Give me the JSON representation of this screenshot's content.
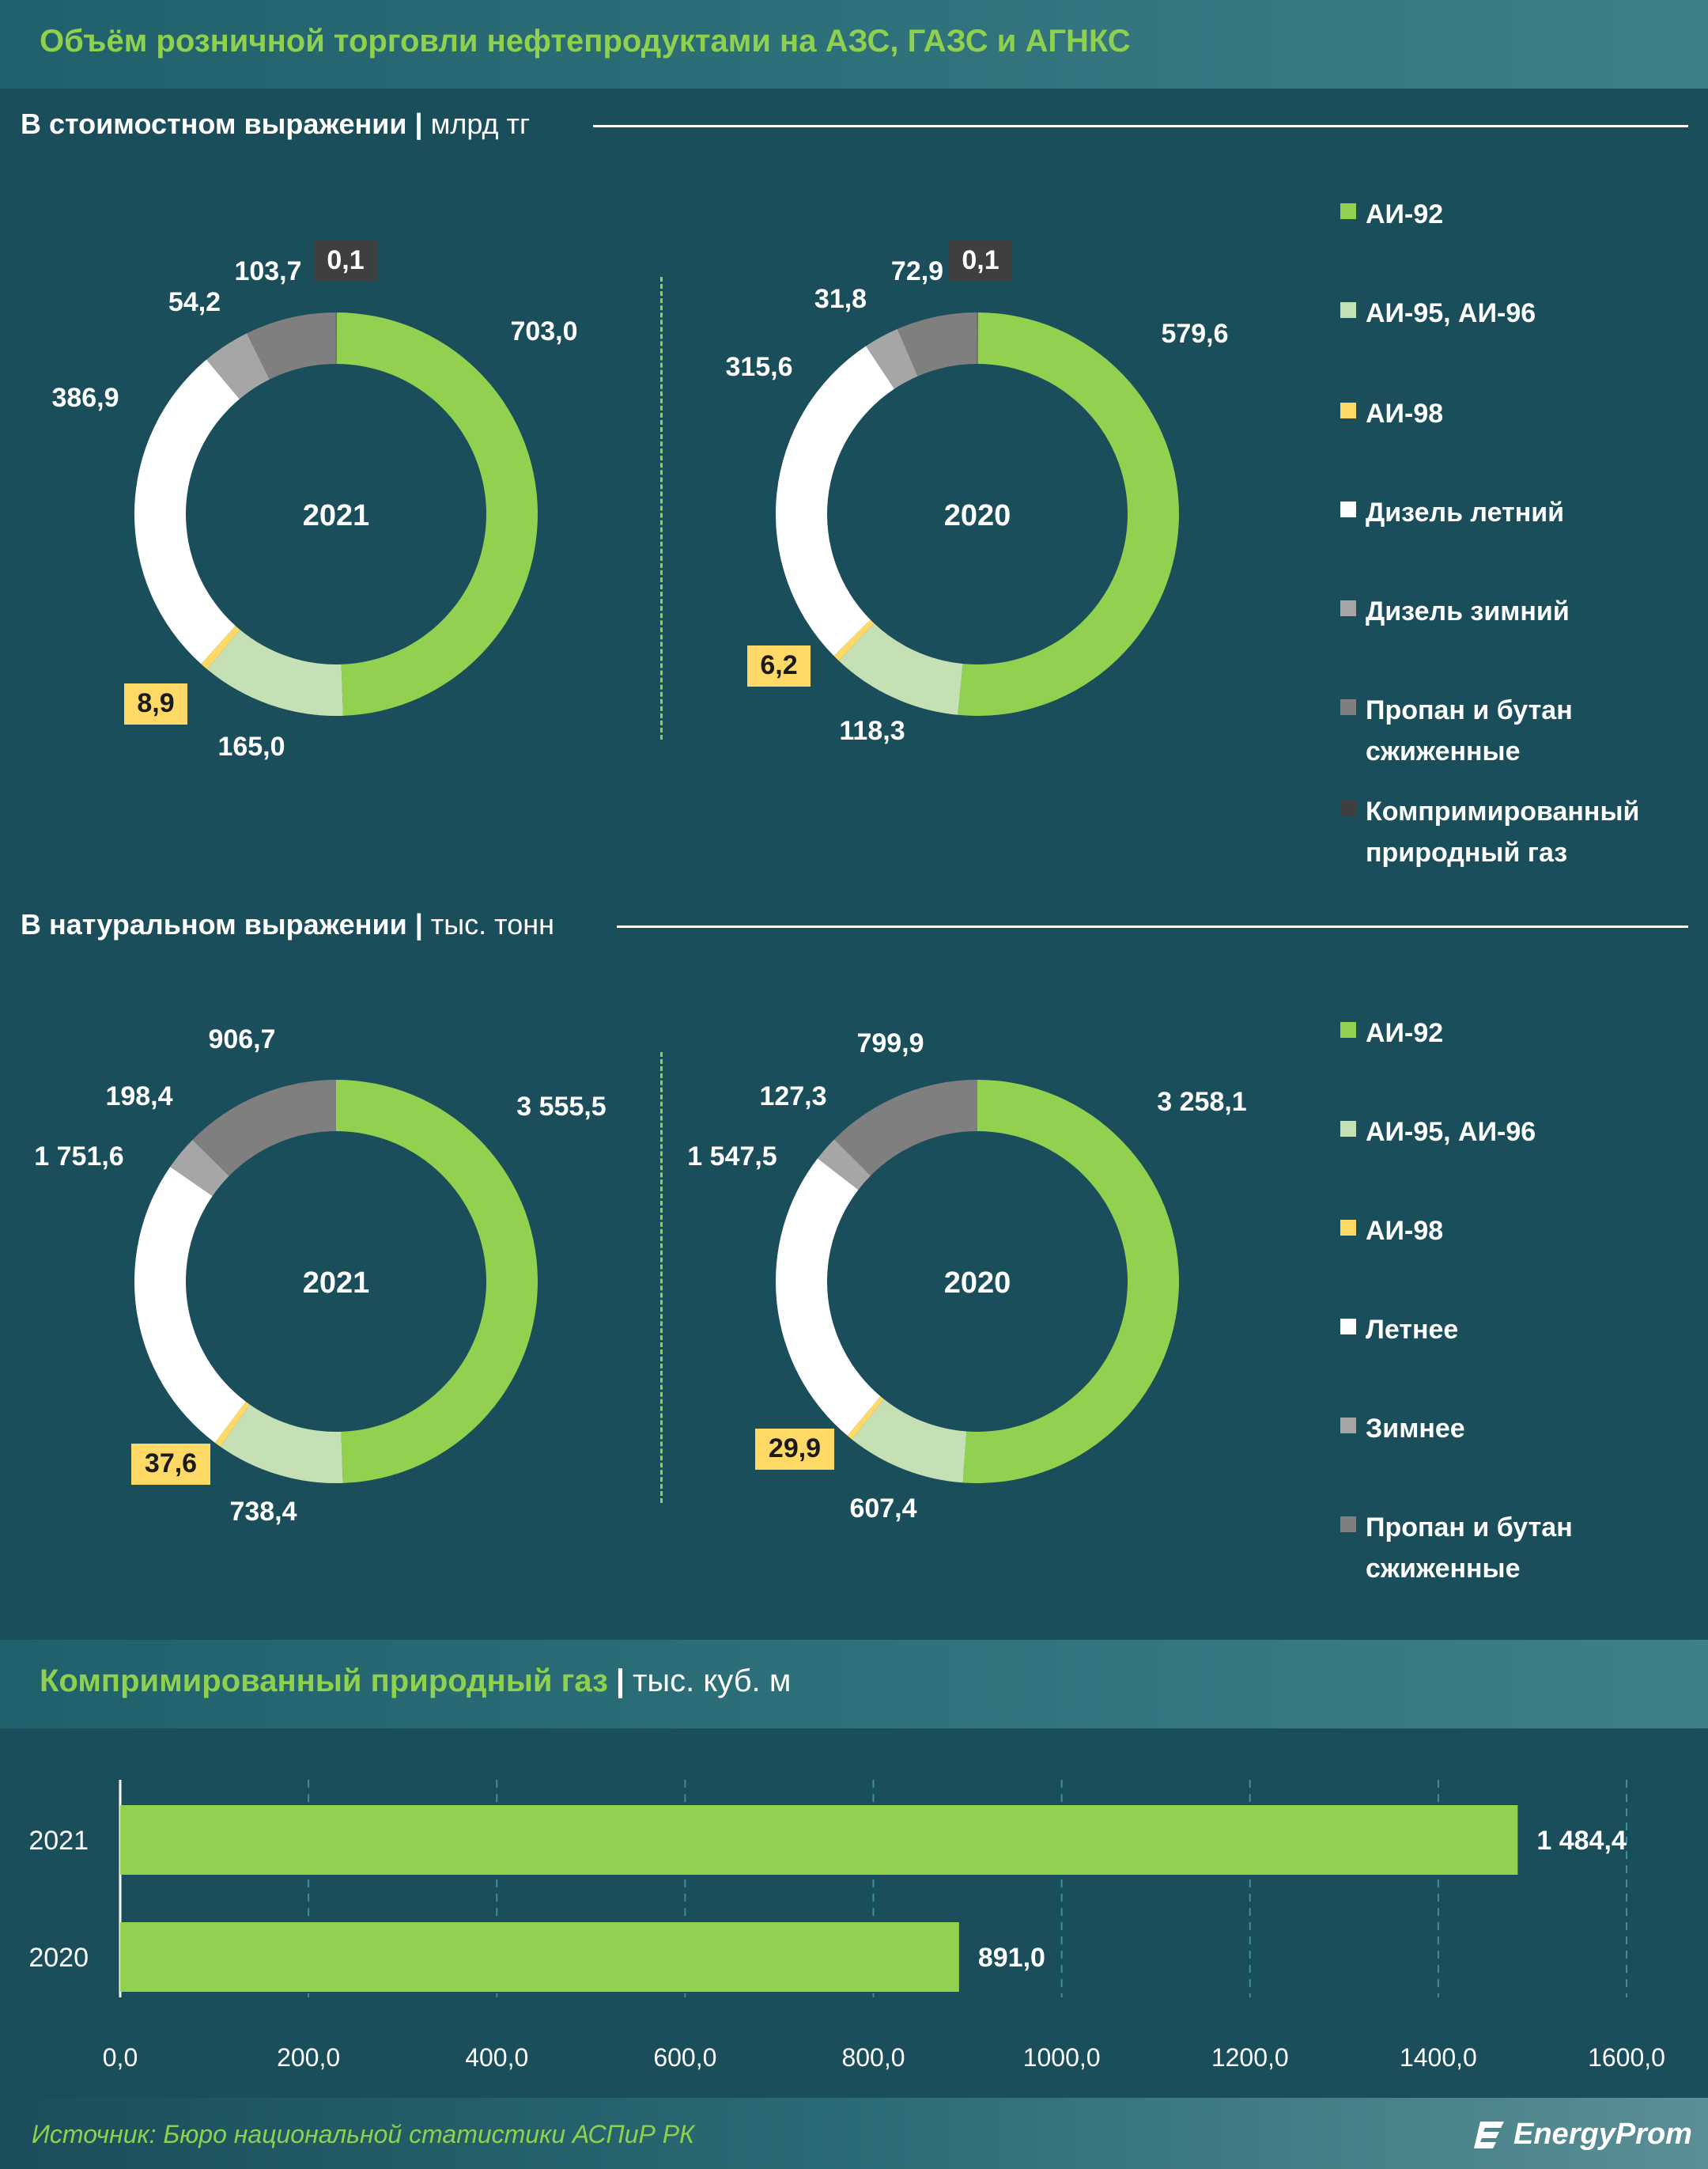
{
  "header": {
    "title": "Объём розничной торговли нефтепродуктами на АЗС, ГАЗС и АГНКС"
  },
  "section_value": {
    "title": "В стоимостном выражении",
    "unit": "млрд тг"
  },
  "section_volume": {
    "title": "В натуральном выражении",
    "unit": "тыс. тонн"
  },
  "legend_value": [
    "АИ-92",
    "АИ-95, АИ-96",
    "АИ-98",
    "Дизель летний",
    "Дизель зимний",
    "Пропан и бутан сжиженные",
    "Компримированный природный газ"
  ],
  "legend_volume": [
    "АИ-92",
    "АИ-95, АИ-96",
    "АИ-98",
    "Летнее",
    "Зимнее",
    "Пропан и бутан сжиженные"
  ],
  "colors": {
    "ai92": "#92d050",
    "ai95": "#c5e0b4",
    "ai98": "#ffd966",
    "diesel_summer": "#ffffff",
    "diesel_winter": "#a6a6a6",
    "lpg": "#7f7f7f",
    "cng": "#3f3f3f",
    "background": "#1a4e5a",
    "accent": "#8fd14f"
  },
  "cng_section": {
    "title": "Компримированный природный газ",
    "unit": "тыс. куб. м"
  },
  "source": "Источник: Бюро национальной статистики АСПиР РК",
  "logo_text": "EnergyProm",
  "chart_data": [
    {
      "type": "pie",
      "variant": "donut",
      "center_label": "2021",
      "categories": [
        "АИ-92",
        "АИ-95, АИ-96",
        "АИ-98",
        "Дизель летний",
        "Дизель зимний",
        "Пропан и бутан сжиженные",
        "Компримированный природный газ"
      ],
      "labels": [
        "703,0",
        "165,0",
        "8,9",
        "386,9",
        "54,2",
        "103,7",
        "0,1"
      ],
      "values": [
        703.0,
        165.0,
        8.9,
        386.9,
        54.2,
        103.7,
        0.1
      ]
    },
    {
      "type": "pie",
      "variant": "donut",
      "center_label": "2020",
      "categories": [
        "АИ-92",
        "АИ-95, АИ-96",
        "АИ-98",
        "Дизель летний",
        "Дизель зимний",
        "Пропан и бутан сжиженные",
        "Компримированный природный газ"
      ],
      "labels": [
        "579,6",
        "118,3",
        "6,2",
        "315,6",
        "31,8",
        "72,9",
        "0,1"
      ],
      "values": [
        579.6,
        118.3,
        6.2,
        315.6,
        31.8,
        72.9,
        0.1
      ]
    },
    {
      "type": "pie",
      "variant": "donut",
      "center_label": "2021",
      "categories": [
        "АИ-92",
        "АИ-95, АИ-96",
        "АИ-98",
        "Летнее",
        "Зимнее",
        "Пропан и бутан сжиженные"
      ],
      "labels": [
        "3 555,5",
        "738,4",
        "37,6",
        "1 751,6",
        "198,4",
        "906,7"
      ],
      "values": [
        3555.5,
        738.4,
        37.6,
        1751.6,
        198.4,
        906.7
      ]
    },
    {
      "type": "pie",
      "variant": "donut",
      "center_label": "2020",
      "categories": [
        "АИ-92",
        "АИ-95, АИ-96",
        "АИ-98",
        "Летнее",
        "Зимнее",
        "Пропан и бутан сжиженные"
      ],
      "labels": [
        "3 258,1",
        "607,4",
        "29,9",
        "1 547,5",
        "127,3",
        "799,9"
      ],
      "values": [
        3258.1,
        607.4,
        29.9,
        1547.5,
        127.3,
        799.9
      ]
    },
    {
      "type": "bar",
      "orientation": "horizontal",
      "categories": [
        "2021",
        "2020"
      ],
      "values": [
        1484.4,
        891.0
      ],
      "value_labels": [
        "1 484,4",
        "891,0"
      ],
      "xlim": [
        0,
        1600
      ],
      "xticks": [
        "0,0",
        "200,0",
        "400,0",
        "600,0",
        "800,0",
        "1000,0",
        "1200,0",
        "1400,0",
        "1600,0"
      ],
      "grid": true
    }
  ]
}
